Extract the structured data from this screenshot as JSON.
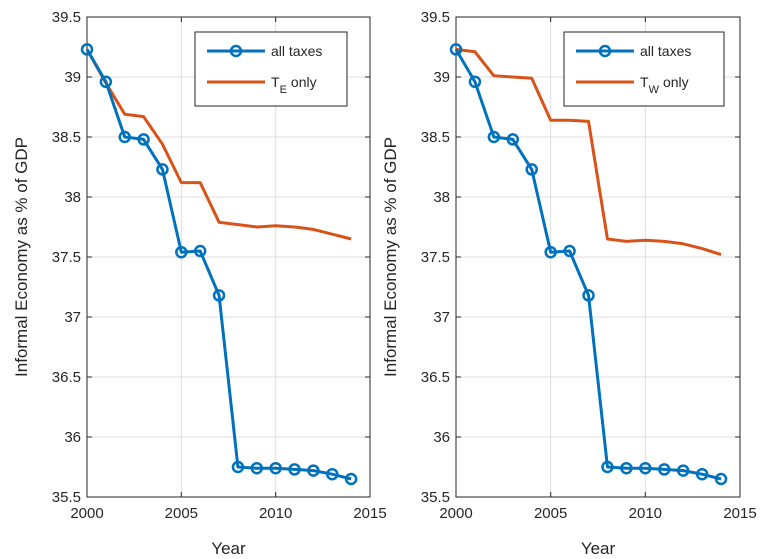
{
  "colors": {
    "all_taxes": "#0072BD",
    "single_tax": "#D95319"
  },
  "chart_data": [
    {
      "type": "line",
      "xlabel": "Year",
      "ylabel": "Informal Economy as % of GDP",
      "xlim": [
        2000,
        2015
      ],
      "ylim": [
        35.5,
        39.5
      ],
      "xticks": [
        "2000",
        "2005",
        "2010",
        "2015"
      ],
      "yticks": [
        "35.5",
        "36",
        "36.5",
        "37",
        "37.5",
        "38",
        "38.5",
        "39",
        "39.5"
      ],
      "grid": true,
      "legend_position": "top-right",
      "x": [
        2000,
        2001,
        2002,
        2003,
        2004,
        2005,
        2006,
        2007,
        2008,
        2009,
        2010,
        2011,
        2012,
        2013,
        2014
      ],
      "series": [
        {
          "name": "all taxes",
          "marker": "circle",
          "values": [
            39.23,
            38.96,
            38.5,
            38.48,
            38.23,
            37.54,
            37.55,
            37.18,
            35.75,
            35.74,
            35.74,
            35.73,
            35.72,
            35.69,
            35.65
          ]
        },
        {
          "name": "T_E only",
          "name_main": "T",
          "name_sub": "E",
          "name_rest": "only",
          "marker": "none",
          "values": [
            39.23,
            38.95,
            38.69,
            38.67,
            38.44,
            38.12,
            38.12,
            37.79,
            37.77,
            37.75,
            37.76,
            37.75,
            37.73,
            37.69,
            37.65
          ]
        }
      ]
    },
    {
      "type": "line",
      "xlabel": "Year",
      "ylabel": "Informal Economy as % of GDP",
      "xlim": [
        2000,
        2015
      ],
      "ylim": [
        35.5,
        39.5
      ],
      "xticks": [
        "2000",
        "2005",
        "2010",
        "2015"
      ],
      "yticks": [
        "35.5",
        "36",
        "36.5",
        "37",
        "37.5",
        "38",
        "38.5",
        "39",
        "39.5"
      ],
      "grid": true,
      "legend_position": "top-right",
      "x": [
        2000,
        2001,
        2002,
        2003,
        2004,
        2005,
        2006,
        2007,
        2008,
        2009,
        2010,
        2011,
        2012,
        2013,
        2014
      ],
      "series": [
        {
          "name": "all taxes",
          "marker": "circle",
          "values": [
            39.23,
            38.96,
            38.5,
            38.48,
            38.23,
            37.54,
            37.55,
            37.18,
            35.75,
            35.74,
            35.74,
            35.73,
            35.72,
            35.69,
            35.65
          ]
        },
        {
          "name": "T_W only",
          "name_main": "T",
          "name_sub": "W",
          "name_rest": "only",
          "marker": "none",
          "values": [
            39.23,
            39.21,
            39.01,
            39.0,
            38.99,
            38.64,
            38.64,
            38.63,
            37.65,
            37.63,
            37.64,
            37.63,
            37.61,
            37.57,
            37.52
          ]
        }
      ]
    }
  ]
}
